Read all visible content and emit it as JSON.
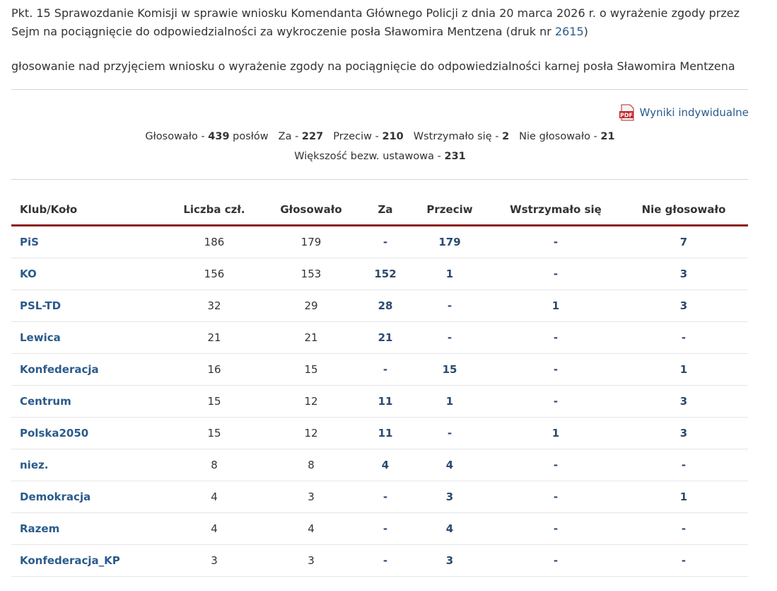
{
  "header": {
    "title": "Pkt. 15 Sprawozdanie Komisji w sprawie wniosku Komendanta Głównego Policji z dnia 20 marca 2026 r. o wyrażenie zgody przez Sejm na pociągnięcie do odpowiedzialności za wykroczenie posła Sławomira Mentzena (druk nr ",
    "print_link": "2615",
    "title_end": ")",
    "subtitle": "głosowanie nad przyjęciem wniosku o wyrażenie zgody na pociągnięcie do odpowiedzialności karnej posła Sławomira Mentzena"
  },
  "pdf": {
    "icon": "PDF",
    "link": "Wyniki indywidualne"
  },
  "summary": {
    "line1": [
      {
        "label": "Głosowało - ",
        "value": 439,
        "unit": " posłów"
      },
      {
        "label": "Za - ",
        "value": 227
      },
      {
        "label": "Przeciw - ",
        "value": 210
      },
      {
        "label": "Wstrzymało się - ",
        "value": 2
      },
      {
        "label": "Nie głosowało - ",
        "value": 21
      }
    ],
    "line2": {
      "label": "Większość bezw. ustawowa - ",
      "value": 231
    }
  },
  "table": {
    "columns": [
      "Klub/Koło",
      "Liczba czł.",
      "Głosowało",
      "Za",
      "Przeciw",
      "Wstrzymało się",
      "Nie głosowało"
    ],
    "rows": [
      [
        "PiS",
        186,
        179,
        "-",
        179,
        "-",
        7
      ],
      [
        "KO",
        156,
        153,
        152,
        1,
        "-",
        3
      ],
      [
        "PSL-TD",
        32,
        29,
        28,
        "-",
        1,
        3
      ],
      [
        "Lewica",
        21,
        21,
        21,
        "-",
        "-",
        "-"
      ],
      [
        "Konfederacja",
        16,
        15,
        "-",
        15,
        "-",
        1
      ],
      [
        "Centrum",
        15,
        12,
        11,
        1,
        "-",
        3
      ],
      [
        "Polska2050",
        15,
        12,
        11,
        "-",
        1,
        3
      ],
      [
        "niez.",
        8,
        8,
        4,
        4,
        "-",
        "-"
      ],
      [
        "Demokracja",
        4,
        3,
        "-",
        3,
        "-",
        1
      ],
      [
        "Razem",
        4,
        4,
        "-",
        4,
        "-",
        "-"
      ],
      [
        "Konfederacja_KP",
        3,
        3,
        "-",
        3,
        "-",
        "-"
      ]
    ]
  }
}
